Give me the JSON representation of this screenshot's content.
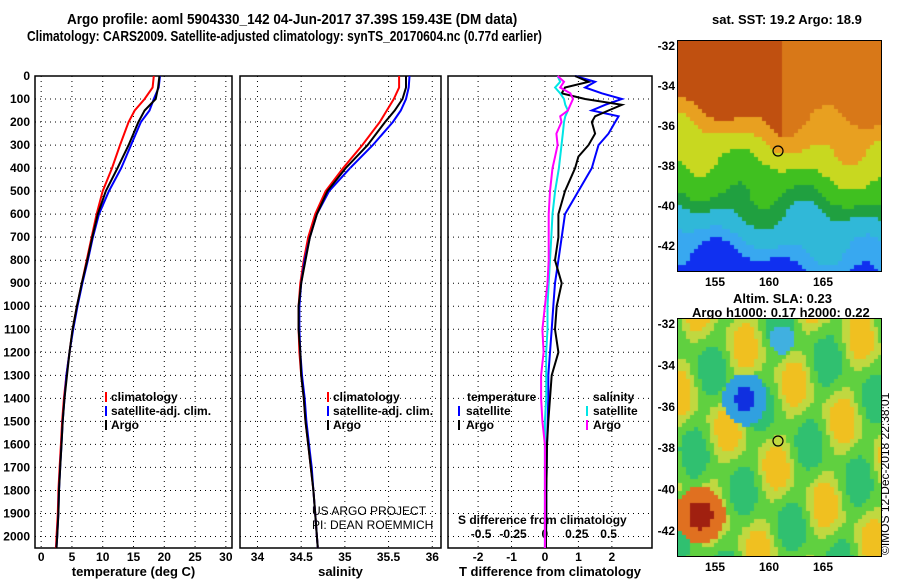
{
  "title_line1": "Argo profile: aoml 5904330_142 04-Jun-2017 37.39S 159.43E (DM data)",
  "title_line2": "Climatology: CARS2009. Satellite-adjusted climatology: synTS_20170604.nc (0.77d earlier)",
  "credit_line1": "US ARGO PROJECT",
  "credit_line2": "PI: DEAN ROEMMICH",
  "imos_stamp": "©IMOS 12-Dec-2018 22:38:01",
  "map_top": {
    "title": "sat. SST: 19.2 Argo: 18.9",
    "lat_ticks": [
      "-32",
      "-34",
      "-36",
      "-38",
      "-40",
      "-42"
    ],
    "lon_ticks": [
      "155",
      "160",
      "165"
    ]
  },
  "map_bottom": {
    "title1": "Altim. SLA: 0.23",
    "title2": "Argo h1000: 0.17 h2000: 0.22",
    "lat_ticks": [
      "-32",
      "-34",
      "-36",
      "-38",
      "-40",
      "-42"
    ],
    "lon_ticks": [
      "155",
      "160",
      "165"
    ]
  },
  "colors": {
    "climatology": "#ff0000",
    "satellite": "#0000ff",
    "argo": "#000000",
    "s_satellite": "#00e5e5",
    "s_argo": "#ff00ff"
  },
  "chart_data": [
    {
      "type": "line",
      "xlabel": "temperature (deg C)",
      "xlim": [
        -1,
        31
      ],
      "ylim": [
        0,
        2050
      ],
      "xticks": [
        "0",
        "5",
        "10",
        "15",
        "20",
        "25",
        "30"
      ],
      "xtick_vals": [
        0,
        5,
        10,
        15,
        20,
        25,
        30
      ],
      "yticks": [
        "0",
        "100",
        "200",
        "300",
        "400",
        "500",
        "600",
        "700",
        "800",
        "900",
        "1000",
        "1100",
        "1200",
        "1300",
        "1400",
        "1500",
        "1600",
        "1700",
        "1800",
        "1900",
        "2000"
      ],
      "legend": [
        "climatology",
        "satellite-adj. clim.",
        "Argo"
      ],
      "depth": [
        0,
        50,
        100,
        150,
        200,
        300,
        400,
        500,
        600,
        700,
        800,
        900,
        1000,
        1100,
        1200,
        1300,
        1400,
        1500,
        1600,
        1700,
        1800,
        1900,
        2000,
        2050
      ],
      "series": [
        {
          "name": "climatology",
          "values": [
            18.3,
            18.1,
            16.8,
            15.2,
            14.2,
            12.8,
            11.5,
            10.0,
            9.0,
            8.2,
            7.4,
            6.6,
            5.8,
            5.1,
            4.6,
            4.1,
            3.7,
            3.4,
            3.2,
            3.0,
            2.8,
            2.7,
            2.5,
            2.4
          ]
        },
        {
          "name": "satellite-adj. clim.",
          "values": [
            19.3,
            19.1,
            18.3,
            17.6,
            16.2,
            14.6,
            13.0,
            11.0,
            9.4,
            8.4,
            7.6,
            6.7,
            5.9,
            5.2,
            4.6,
            4.1,
            3.8,
            3.5,
            3.3,
            3.1,
            2.9,
            2.8,
            2.6,
            2.5
          ]
        },
        {
          "name": "Argo",
          "values": [
            19.2,
            19.0,
            18.6,
            16.8,
            15.8,
            14.2,
            12.4,
            10.5,
            9.2,
            8.3,
            7.5,
            6.6,
            5.8,
            5.1,
            4.6,
            4.2,
            3.8,
            3.5,
            3.3,
            3.1,
            2.9,
            2.8,
            2.6,
            2.5
          ]
        }
      ]
    },
    {
      "type": "line",
      "xlabel": "salinity",
      "xlim": [
        33.8,
        36.1
      ],
      "ylim": [
        0,
        2050
      ],
      "xticks": [
        "34",
        "34.5",
        "35",
        "35.5",
        "36"
      ],
      "xtick_vals": [
        34,
        34.5,
        35,
        35.5,
        36
      ],
      "legend": [
        "climatology",
        "satellite-adj. clim.",
        "Argo"
      ],
      "depth": [
        0,
        50,
        100,
        150,
        200,
        300,
        400,
        500,
        600,
        700,
        800,
        900,
        1000,
        1100,
        1200,
        1300,
        1400,
        1500,
        1600,
        1700,
        1800,
        1900,
        2000,
        2050
      ],
      "series": [
        {
          "name": "climatology",
          "values": [
            35.62,
            35.62,
            35.56,
            35.48,
            35.4,
            35.2,
            34.98,
            34.78,
            34.66,
            34.58,
            34.53,
            34.49,
            34.47,
            34.47,
            34.48,
            34.5,
            34.53,
            34.55,
            34.58,
            34.61,
            34.64,
            34.66,
            34.68,
            34.69
          ]
        },
        {
          "name": "satellite-adj. clim.",
          "values": [
            35.74,
            35.73,
            35.7,
            35.64,
            35.55,
            35.32,
            35.06,
            34.82,
            34.68,
            34.6,
            34.54,
            34.5,
            34.48,
            34.48,
            34.49,
            34.51,
            34.54,
            34.56,
            34.59,
            34.62,
            34.64,
            34.66,
            34.68,
            34.69
          ]
        },
        {
          "name": "Argo",
          "values": [
            35.7,
            35.7,
            35.66,
            35.57,
            35.46,
            35.26,
            35.01,
            34.8,
            34.68,
            34.6,
            34.55,
            34.5,
            34.47,
            34.47,
            34.49,
            34.5,
            34.53,
            34.55,
            34.58,
            34.61,
            34.64,
            34.66,
            34.68,
            34.69
          ]
        }
      ]
    },
    {
      "type": "line",
      "xlabel": "T difference from climatology",
      "x2label": "S difference from climatology",
      "xlim": [
        -2.9,
        3.2
      ],
      "x2lim": [
        -0.76,
        0.84
      ],
      "ylim": [
        0,
        2050
      ],
      "xticks": [
        "-2",
        "-1",
        "0",
        "1",
        "2"
      ],
      "xtick_vals": [
        -2,
        -1,
        0,
        1,
        2
      ],
      "x2ticks": [
        "-0.5",
        "-0.25",
        "0",
        "0.25",
        "0.5"
      ],
      "x2tick_vals": [
        -0.5,
        -0.25,
        0,
        0.25,
        0.5
      ],
      "legend_t": {
        "title": "temperature",
        "items": [
          "satellite",
          "Argo"
        ]
      },
      "legend_s": {
        "title": "salinity",
        "items": [
          "satellite",
          "Argo"
        ]
      },
      "depth": [
        0,
        25,
        50,
        75,
        100,
        125,
        150,
        175,
        200,
        250,
        300,
        350,
        400,
        500,
        600,
        700,
        800,
        900,
        1000,
        1100,
        1200,
        1300,
        1400,
        1500,
        1600,
        1700,
        1800,
        1900,
        2000,
        2050
      ],
      "series": [
        {
          "name": "T satellite",
          "axis": "T",
          "values": [
            0.9,
            1.5,
            1.2,
            1.7,
            2.3,
            1.8,
            1.4,
            2.2,
            2.1,
            1.9,
            1.6,
            1.5,
            1.4,
            1.0,
            0.6,
            0.5,
            0.4,
            0.3,
            0.25,
            0.2,
            0.15,
            0.1,
            0.1,
            0.08,
            0.06,
            0.05,
            0.04,
            0.04,
            0.03,
            0.03
          ]
        },
        {
          "name": "T Argo",
          "axis": "T",
          "values": [
            0.9,
            1.3,
            0.6,
            0.5,
            1.2,
            2.3,
            1.9,
            1.5,
            1.4,
            1.5,
            1.3,
            1.0,
            0.9,
            0.6,
            0.4,
            0.4,
            0.3,
            0.5,
            0.35,
            0.3,
            0.4,
            0.2,
            0.15,
            0.1,
            0.06,
            0.05,
            0.04,
            0.04,
            0.03,
            0.03
          ]
        },
        {
          "name": "S satellite",
          "axis": "S",
          "values": [
            0.1,
            0.12,
            0.08,
            0.12,
            0.15,
            0.16,
            0.18,
            0.16,
            0.15,
            0.14,
            0.13,
            0.12,
            0.11,
            0.08,
            0.06,
            0.05,
            0.04,
            0.03,
            0.02,
            0.02,
            0.01,
            0.01,
            0.01,
            0.0,
            0.0,
            0.0,
            0.0,
            0.0,
            0.0,
            0.0
          ]
        },
        {
          "name": "S Argo",
          "axis": "S",
          "values": [
            0.1,
            0.15,
            0.12,
            0.2,
            0.22,
            0.2,
            0.18,
            0.12,
            0.13,
            0.09,
            0.1,
            0.08,
            0.06,
            0.04,
            0.03,
            0.03,
            0.03,
            0.02,
            0.0,
            -0.02,
            -0.01,
            -0.03,
            -0.03,
            -0.02,
            0.0,
            0.0,
            0.0,
            0.0,
            0.0,
            0.0
          ]
        }
      ]
    }
  ]
}
